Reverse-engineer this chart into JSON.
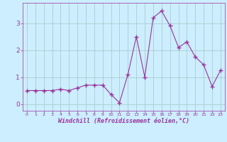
{
  "x": [
    0,
    1,
    2,
    3,
    4,
    5,
    6,
    7,
    8,
    9,
    10,
    11,
    12,
    13,
    14,
    15,
    16,
    17,
    18,
    19,
    20,
    21,
    22,
    23
  ],
  "y": [
    0.5,
    0.5,
    0.5,
    0.5,
    0.55,
    0.5,
    0.6,
    0.7,
    0.7,
    0.7,
    0.35,
    0.05,
    1.1,
    2.5,
    1.0,
    3.2,
    3.45,
    2.9,
    2.1,
    2.3,
    1.75,
    1.45,
    0.65,
    1.25
  ],
  "line_color": "#993399",
  "marker": "+",
  "background_color": "#cceeff",
  "grid_color": "#aacccc",
  "xlabel": "Windchill (Refroidissement éolien,°C)",
  "xlabel_color": "#993399",
  "tick_color": "#993399",
  "ylim": [
    -0.25,
    3.75
  ],
  "xlim": [
    -0.5,
    23.5
  ],
  "yticks": [
    0,
    1,
    2,
    3
  ],
  "xticks": [
    0,
    1,
    2,
    3,
    4,
    5,
    6,
    7,
    8,
    9,
    10,
    11,
    12,
    13,
    14,
    15,
    16,
    17,
    18,
    19,
    20,
    21,
    22,
    23
  ]
}
